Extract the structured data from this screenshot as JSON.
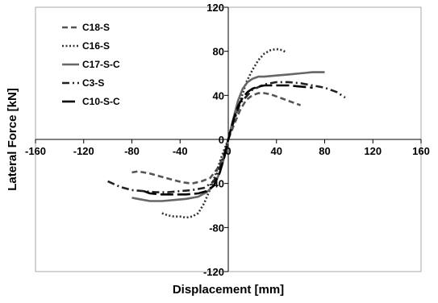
{
  "chart_data": {
    "type": "line",
    "xlabel": "Displacement [mm]",
    "ylabel": "Lateral Force [kN]",
    "xlim": [
      -160,
      160
    ],
    "ylim": [
      -120,
      120
    ],
    "xticks": [
      -160,
      -120,
      -80,
      -40,
      0,
      40,
      80,
      120,
      160
    ],
    "yticks": [
      -120,
      -80,
      -40,
      0,
      40,
      80,
      120
    ],
    "xtick_labels": [
      "-160",
      "-120",
      "-80",
      "-40",
      "0",
      "40",
      "80",
      "120",
      "160"
    ],
    "ytick_labels": [
      "-120",
      "-80",
      "-40",
      "0",
      "40",
      "80",
      "120"
    ],
    "grid": false,
    "legend_position": "top-left",
    "series": [
      {
        "name": "C18-S",
        "color": "#555555",
        "dash": "dash",
        "x": [
          -80,
          -75,
          -65,
          -55,
          -45,
          -38,
          -30,
          -22,
          -15,
          -8,
          -3,
          0,
          5,
          10,
          15,
          20,
          25,
          30,
          35,
          40,
          45,
          50,
          55,
          60
        ],
        "y": [
          -30,
          -29,
          -31,
          -34,
          -37,
          -39,
          -40,
          -38,
          -35,
          -25,
          -12,
          0,
          14,
          27,
          36,
          40,
          42,
          42,
          41,
          39,
          37,
          35,
          33,
          31
        ]
      },
      {
        "name": "C16-S",
        "color": "#333333",
        "dash": "dot",
        "x": [
          -55,
          -50,
          -45,
          -40,
          -35,
          -30,
          -25,
          -20,
          -15,
          -10,
          -5,
          0,
          5,
          10,
          15,
          20,
          25,
          30,
          35,
          40,
          45,
          48
        ],
        "y": [
          -67,
          -69,
          -70,
          -70,
          -71,
          -70,
          -67,
          -58,
          -45,
          -30,
          -14,
          0,
          18,
          35,
          52,
          63,
          72,
          78,
          81,
          82,
          81,
          79
        ]
      },
      {
        "name": "C17-S-C",
        "color": "#666666",
        "dash": "solid",
        "x": [
          -80,
          -75,
          -65,
          -55,
          -45,
          -35,
          -25,
          -18,
          -12,
          -7,
          -3,
          0,
          4,
          8,
          12,
          16,
          20,
          25,
          30,
          40,
          50,
          60,
          70,
          80
        ],
        "y": [
          -53,
          -54,
          -56,
          -56,
          -55,
          -54,
          -52,
          -48,
          -42,
          -30,
          -15,
          0,
          18,
          35,
          46,
          52,
          55,
          57,
          57,
          58,
          59,
          60,
          61,
          61
        ]
      },
      {
        "name": "C3-S",
        "color": "#222222",
        "dash": "dashdot",
        "x": [
          -100,
          -90,
          -80,
          -70,
          -60,
          -50,
          -40,
          -30,
          -20,
          -12,
          -5,
          0,
          5,
          10,
          20,
          30,
          40,
          50,
          60,
          70,
          80,
          90,
          97
        ],
        "y": [
          -38,
          -43,
          -46,
          -47,
          -48,
          -48,
          -47,
          -46,
          -44,
          -38,
          -20,
          0,
          18,
          33,
          45,
          50,
          52,
          52,
          51,
          49,
          47,
          43,
          38
        ]
      },
      {
        "name": "C10-S-C",
        "color": "#000000",
        "dash": "longdash",
        "x": [
          -70,
          -65,
          -55,
          -45,
          -35,
          -25,
          -18,
          -12,
          -7,
          -3,
          0,
          4,
          8,
          12,
          16,
          20,
          25,
          30,
          40,
          50,
          60,
          70
        ],
        "y": [
          -47,
          -49,
          -50,
          -50,
          -50,
          -49,
          -47,
          -42,
          -30,
          -15,
          0,
          17,
          30,
          38,
          43,
          46,
          48,
          49,
          49,
          49,
          48,
          47
        ]
      }
    ]
  }
}
